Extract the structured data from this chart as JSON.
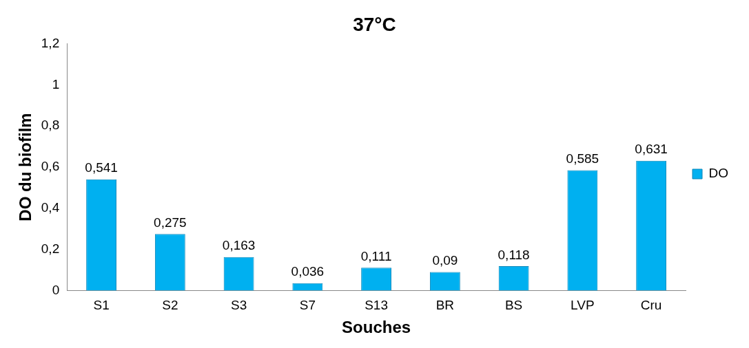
{
  "chart_data": {
    "type": "bar",
    "title": "37°C",
    "xlabel": "Souches",
    "ylabel": "DO du biofilm",
    "categories": [
      "S1",
      "S2",
      "S3",
      "S7",
      "S13",
      "BR",
      "BS",
      "LVP",
      "Cru"
    ],
    "series": [
      {
        "name": "DO",
        "color": "#00b0f0",
        "values": [
          0.541,
          0.275,
          0.163,
          0.036,
          0.111,
          0.09,
          0.118,
          0.585,
          0.631
        ],
        "value_labels": [
          "0,541",
          "0,275",
          "0,163",
          "0,036",
          "0,111",
          "0,09",
          "0,118",
          "0,585",
          "0,631"
        ]
      }
    ],
    "ylim": [
      0,
      1.2
    ],
    "yticks": [
      0,
      {
        "value": 0.2,
        "label": "0,2"
      },
      {
        "value": 0.4,
        "label": "0,4"
      },
      {
        "value": 0.6,
        "label": "0,6"
      },
      {
        "value": 0.8,
        "label": "0,8"
      },
      1,
      {
        "value": 1.2,
        "label": "1,2"
      }
    ],
    "grid": false,
    "legend": "right"
  }
}
